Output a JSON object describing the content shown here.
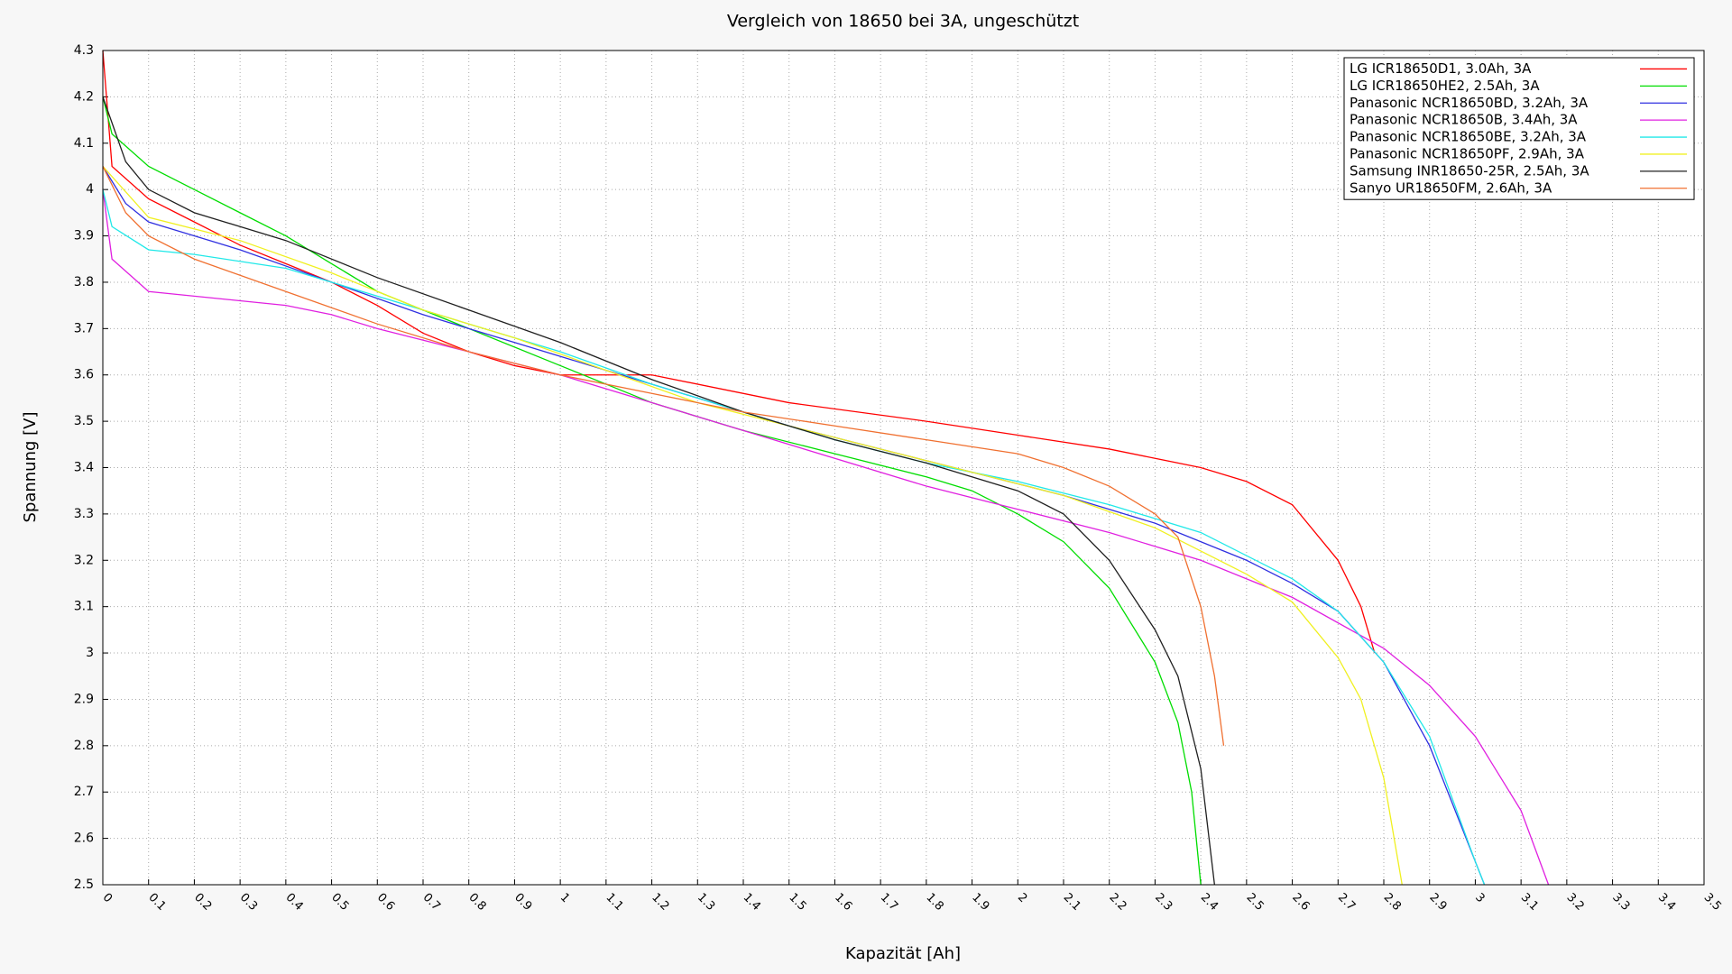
{
  "chart_data": {
    "type": "line",
    "title": "Vergleich von 18650 bei 3A, ungeschützt",
    "x_label": "Kapazität [Ah]",
    "y_label": "Spannung [V]",
    "xlim": [
      0,
      3.5
    ],
    "ylim": [
      2.5,
      4.3
    ],
    "xticks": [
      0,
      0.1,
      0.2,
      0.3,
      0.4,
      0.5,
      0.6,
      0.7,
      0.8,
      0.9,
      1,
      1.1,
      1.2,
      1.3,
      1.4,
      1.5,
      1.6,
      1.7,
      1.8,
      1.9,
      2,
      2.1,
      2.2,
      2.3,
      2.4,
      2.5,
      2.6,
      2.7,
      2.8,
      2.9,
      3,
      3.1,
      3.2,
      3.3,
      3.4,
      3.5
    ],
    "yticks": [
      2.5,
      2.6,
      2.7,
      2.8,
      2.9,
      3,
      3.1,
      3.2,
      3.3,
      3.4,
      3.5,
      3.6,
      3.7,
      3.8,
      3.9,
      4,
      4.1,
      4.2,
      4.3
    ],
    "grid": true,
    "legend": "top-right",
    "series": [
      {
        "name": "LG ICR18650D1, 3.0Ah, 3A",
        "color": "#ff0000",
        "x": [
          0,
          0.02,
          0.1,
          0.2,
          0.3,
          0.4,
          0.5,
          0.6,
          0.7,
          0.8,
          0.9,
          1.0,
          1.2,
          1.5,
          1.8,
          2.0,
          2.2,
          2.4,
          2.5,
          2.6,
          2.7,
          2.75,
          2.78
        ],
        "values": [
          4.3,
          4.05,
          3.98,
          3.93,
          3.88,
          3.84,
          3.8,
          3.75,
          3.69,
          3.65,
          3.62,
          3.6,
          3.6,
          3.54,
          3.5,
          3.47,
          3.44,
          3.4,
          3.37,
          3.32,
          3.2,
          3.1,
          3.0
        ]
      },
      {
        "name": "LG ICR18650HE2, 2.5Ah, 3A",
        "color": "#00dd00",
        "x": [
          0,
          0.02,
          0.1,
          0.2,
          0.3,
          0.4,
          0.5,
          0.6,
          0.8,
          1.0,
          1.2,
          1.4,
          1.6,
          1.8,
          1.9,
          2.0,
          2.1,
          2.2,
          2.3,
          2.35,
          2.38,
          2.4
        ],
        "values": [
          4.2,
          4.12,
          4.05,
          4.0,
          3.95,
          3.9,
          3.84,
          3.78,
          3.7,
          3.62,
          3.54,
          3.48,
          3.43,
          3.38,
          3.35,
          3.3,
          3.24,
          3.14,
          2.98,
          2.85,
          2.7,
          2.5
        ]
      },
      {
        "name": "Panasonic NCR18650BD, 3.2Ah, 3A",
        "color": "#3030e0",
        "x": [
          0,
          0.05,
          0.1,
          0.3,
          0.5,
          0.7,
          0.9,
          1.1,
          1.3,
          1.5,
          1.7,
          1.9,
          2.1,
          2.3,
          2.5,
          2.6,
          2.7,
          2.8,
          2.9,
          3.0,
          3.02
        ],
        "values": [
          4.05,
          3.97,
          3.93,
          3.87,
          3.8,
          3.73,
          3.67,
          3.61,
          3.55,
          3.49,
          3.44,
          3.39,
          3.34,
          3.28,
          3.2,
          3.15,
          3.09,
          2.98,
          2.8,
          2.55,
          2.5
        ]
      },
      {
        "name": "Panasonic NCR18650B, 3.4Ah, 3A",
        "color": "#e020e0",
        "x": [
          0,
          0.02,
          0.1,
          0.2,
          0.3,
          0.4,
          0.5,
          0.6,
          0.8,
          1.0,
          1.2,
          1.4,
          1.6,
          1.8,
          2.0,
          2.2,
          2.4,
          2.6,
          2.8,
          2.9,
          3.0,
          3.1,
          3.16
        ],
        "values": [
          4.0,
          3.85,
          3.78,
          3.77,
          3.76,
          3.75,
          3.73,
          3.7,
          3.65,
          3.6,
          3.54,
          3.48,
          3.42,
          3.36,
          3.31,
          3.26,
          3.2,
          3.12,
          3.01,
          2.93,
          2.82,
          2.66,
          2.5
        ]
      },
      {
        "name": "Panasonic NCR18650BE, 3.2Ah, 3A",
        "color": "#20e8e8",
        "x": [
          0,
          0.02,
          0.1,
          0.2,
          0.4,
          0.6,
          0.8,
          1.0,
          1.2,
          1.4,
          1.6,
          1.8,
          2.0,
          2.2,
          2.4,
          2.6,
          2.7,
          2.8,
          2.9,
          3.0,
          3.02
        ],
        "values": [
          4.0,
          3.92,
          3.87,
          3.86,
          3.83,
          3.77,
          3.71,
          3.65,
          3.58,
          3.52,
          3.46,
          3.41,
          3.37,
          3.32,
          3.26,
          3.16,
          3.09,
          2.98,
          2.82,
          2.55,
          2.5
        ]
      },
      {
        "name": "Panasonic NCR18650PF, 2.9Ah, 3A",
        "color": "#f0f020",
        "x": [
          0,
          0.1,
          0.3,
          0.5,
          0.7,
          0.9,
          1.1,
          1.3,
          1.5,
          1.7,
          1.9,
          2.1,
          2.3,
          2.5,
          2.6,
          2.7,
          2.75,
          2.8,
          2.84
        ],
        "values": [
          4.05,
          3.94,
          3.89,
          3.82,
          3.74,
          3.68,
          3.61,
          3.54,
          3.49,
          3.44,
          3.39,
          3.34,
          3.27,
          3.17,
          3.11,
          2.99,
          2.9,
          2.73,
          2.5
        ]
      },
      {
        "name": "Samsung INR18650-25R, 2.5Ah, 3A",
        "color": "#202020",
        "x": [
          0,
          0.05,
          0.1,
          0.2,
          0.4,
          0.6,
          0.8,
          1.0,
          1.2,
          1.4,
          1.6,
          1.8,
          2.0,
          2.1,
          2.2,
          2.3,
          2.35,
          2.4,
          2.43
        ],
        "values": [
          4.2,
          4.06,
          4.0,
          3.95,
          3.89,
          3.81,
          3.74,
          3.67,
          3.59,
          3.52,
          3.46,
          3.41,
          3.35,
          3.3,
          3.2,
          3.05,
          2.95,
          2.75,
          2.5
        ]
      },
      {
        "name": "Sanyo UR18650FM, 2.6Ah, 3A",
        "color": "#f07030",
        "x": [
          0,
          0.05,
          0.1,
          0.2,
          0.4,
          0.6,
          0.8,
          1.0,
          1.2,
          1.4,
          1.6,
          1.8,
          2.0,
          2.1,
          2.2,
          2.3,
          2.35,
          2.4,
          2.43,
          2.45
        ],
        "values": [
          4.05,
          3.95,
          3.9,
          3.85,
          3.78,
          3.71,
          3.65,
          3.6,
          3.56,
          3.52,
          3.49,
          3.46,
          3.43,
          3.4,
          3.36,
          3.3,
          3.25,
          3.1,
          2.95,
          2.8
        ]
      }
    ]
  }
}
